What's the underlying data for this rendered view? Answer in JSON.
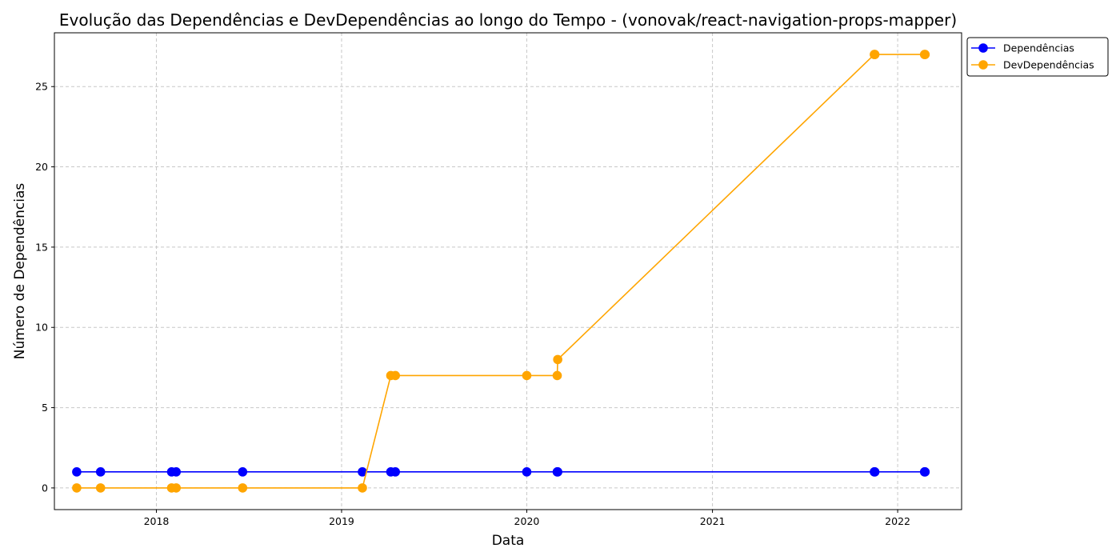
{
  "chart_data": {
    "type": "line",
    "title": "Evolução das Dependências e DevDependências ao longo do Tempo - (vonovak/react-navigation-props-mapper)",
    "xlabel": "Data",
    "ylabel": "Número de Dependências",
    "x_axis_type": "date",
    "xlim": [
      "2017-06-14",
      "2022-05-07"
    ],
    "ylim": [
      -1.35,
      28.35
    ],
    "x_ticks": [
      {
        "date": "2018-01-01",
        "label": "2018"
      },
      {
        "date": "2019-01-01",
        "label": "2019"
      },
      {
        "date": "2020-01-01",
        "label": "2020"
      },
      {
        "date": "2021-01-01",
        "label": "2021"
      },
      {
        "date": "2022-01-01",
        "label": "2022"
      }
    ],
    "y_ticks": [
      0,
      5,
      10,
      15,
      20,
      25
    ],
    "grid": true,
    "legend_position": "outside top-right",
    "series": [
      {
        "name": "Dependências",
        "color": "#0000ff",
        "marker": "circle",
        "x": [
          "2017-07-28",
          "2017-09-13",
          "2018-01-31",
          "2018-02-09",
          "2018-06-20",
          "2019-02-11",
          "2019-04-08",
          "2019-04-17",
          "2020-01-01",
          "2020-03-01",
          "2020-03-02",
          "2021-11-16",
          "2021-11-17",
          "2022-02-23",
          "2022-02-24"
        ],
        "y": [
          1,
          1,
          1,
          1,
          1,
          1,
          1,
          1,
          1,
          1,
          1,
          1,
          1,
          1,
          1
        ]
      },
      {
        "name": "DevDependências",
        "color": "#ffa500",
        "marker": "circle",
        "x": [
          "2017-07-28",
          "2017-09-13",
          "2018-01-31",
          "2018-02-09",
          "2018-06-20",
          "2019-02-11",
          "2019-04-08",
          "2019-04-17",
          "2020-01-01",
          "2020-03-01",
          "2020-03-02",
          "2021-11-16",
          "2021-11-17",
          "2022-02-23",
          "2022-02-24"
        ],
        "y": [
          0,
          0,
          0,
          0,
          0,
          0,
          7,
          7,
          7,
          7,
          8,
          27,
          27,
          27,
          27
        ]
      }
    ]
  }
}
